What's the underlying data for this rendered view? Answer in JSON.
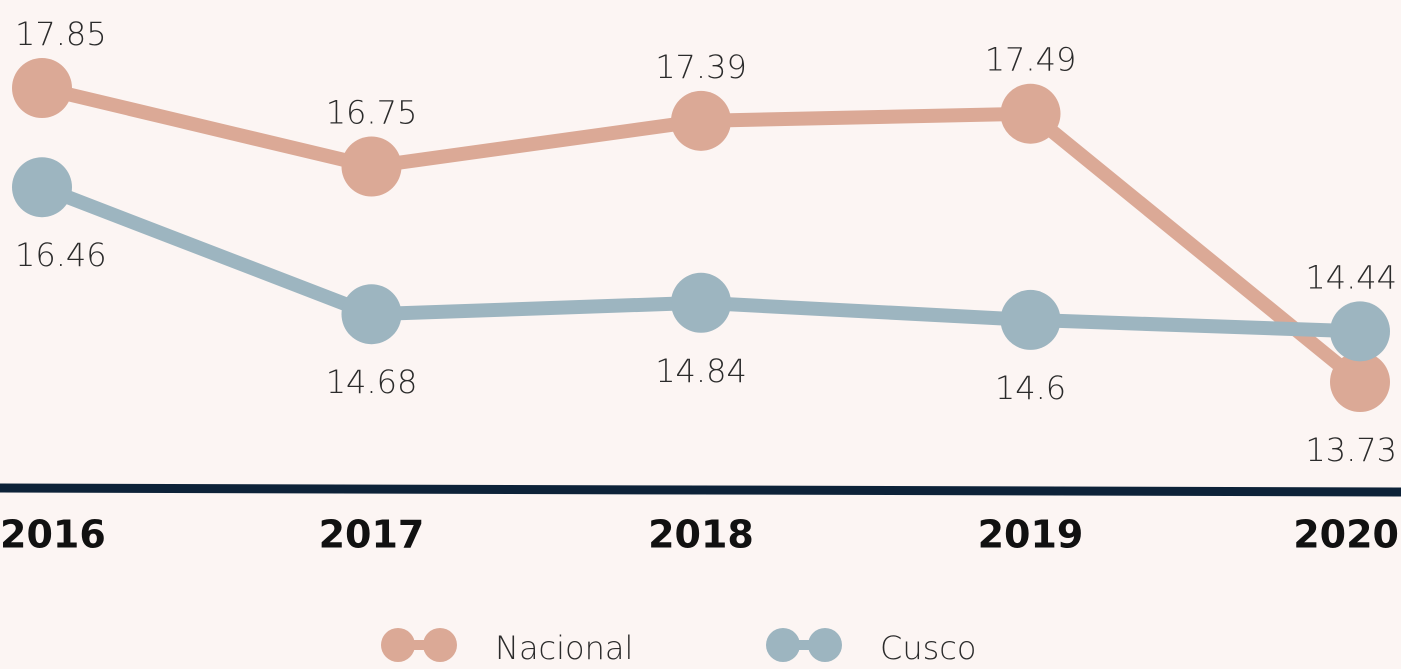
{
  "chart_data": {
    "type": "line",
    "categories": [
      "2016",
      "2017",
      "2018",
      "2019",
      "2020"
    ],
    "series": [
      {
        "name": "Nacional",
        "color": "#dba996",
        "values": [
          17.85,
          16.75,
          17.39,
          17.49,
          13.73
        ]
      },
      {
        "name": "Cusco",
        "color": "#9db5c0",
        "values": [
          16.46,
          14.68,
          14.84,
          14.6,
          14.44
        ]
      }
    ],
    "legend": "bottom"
  }
}
